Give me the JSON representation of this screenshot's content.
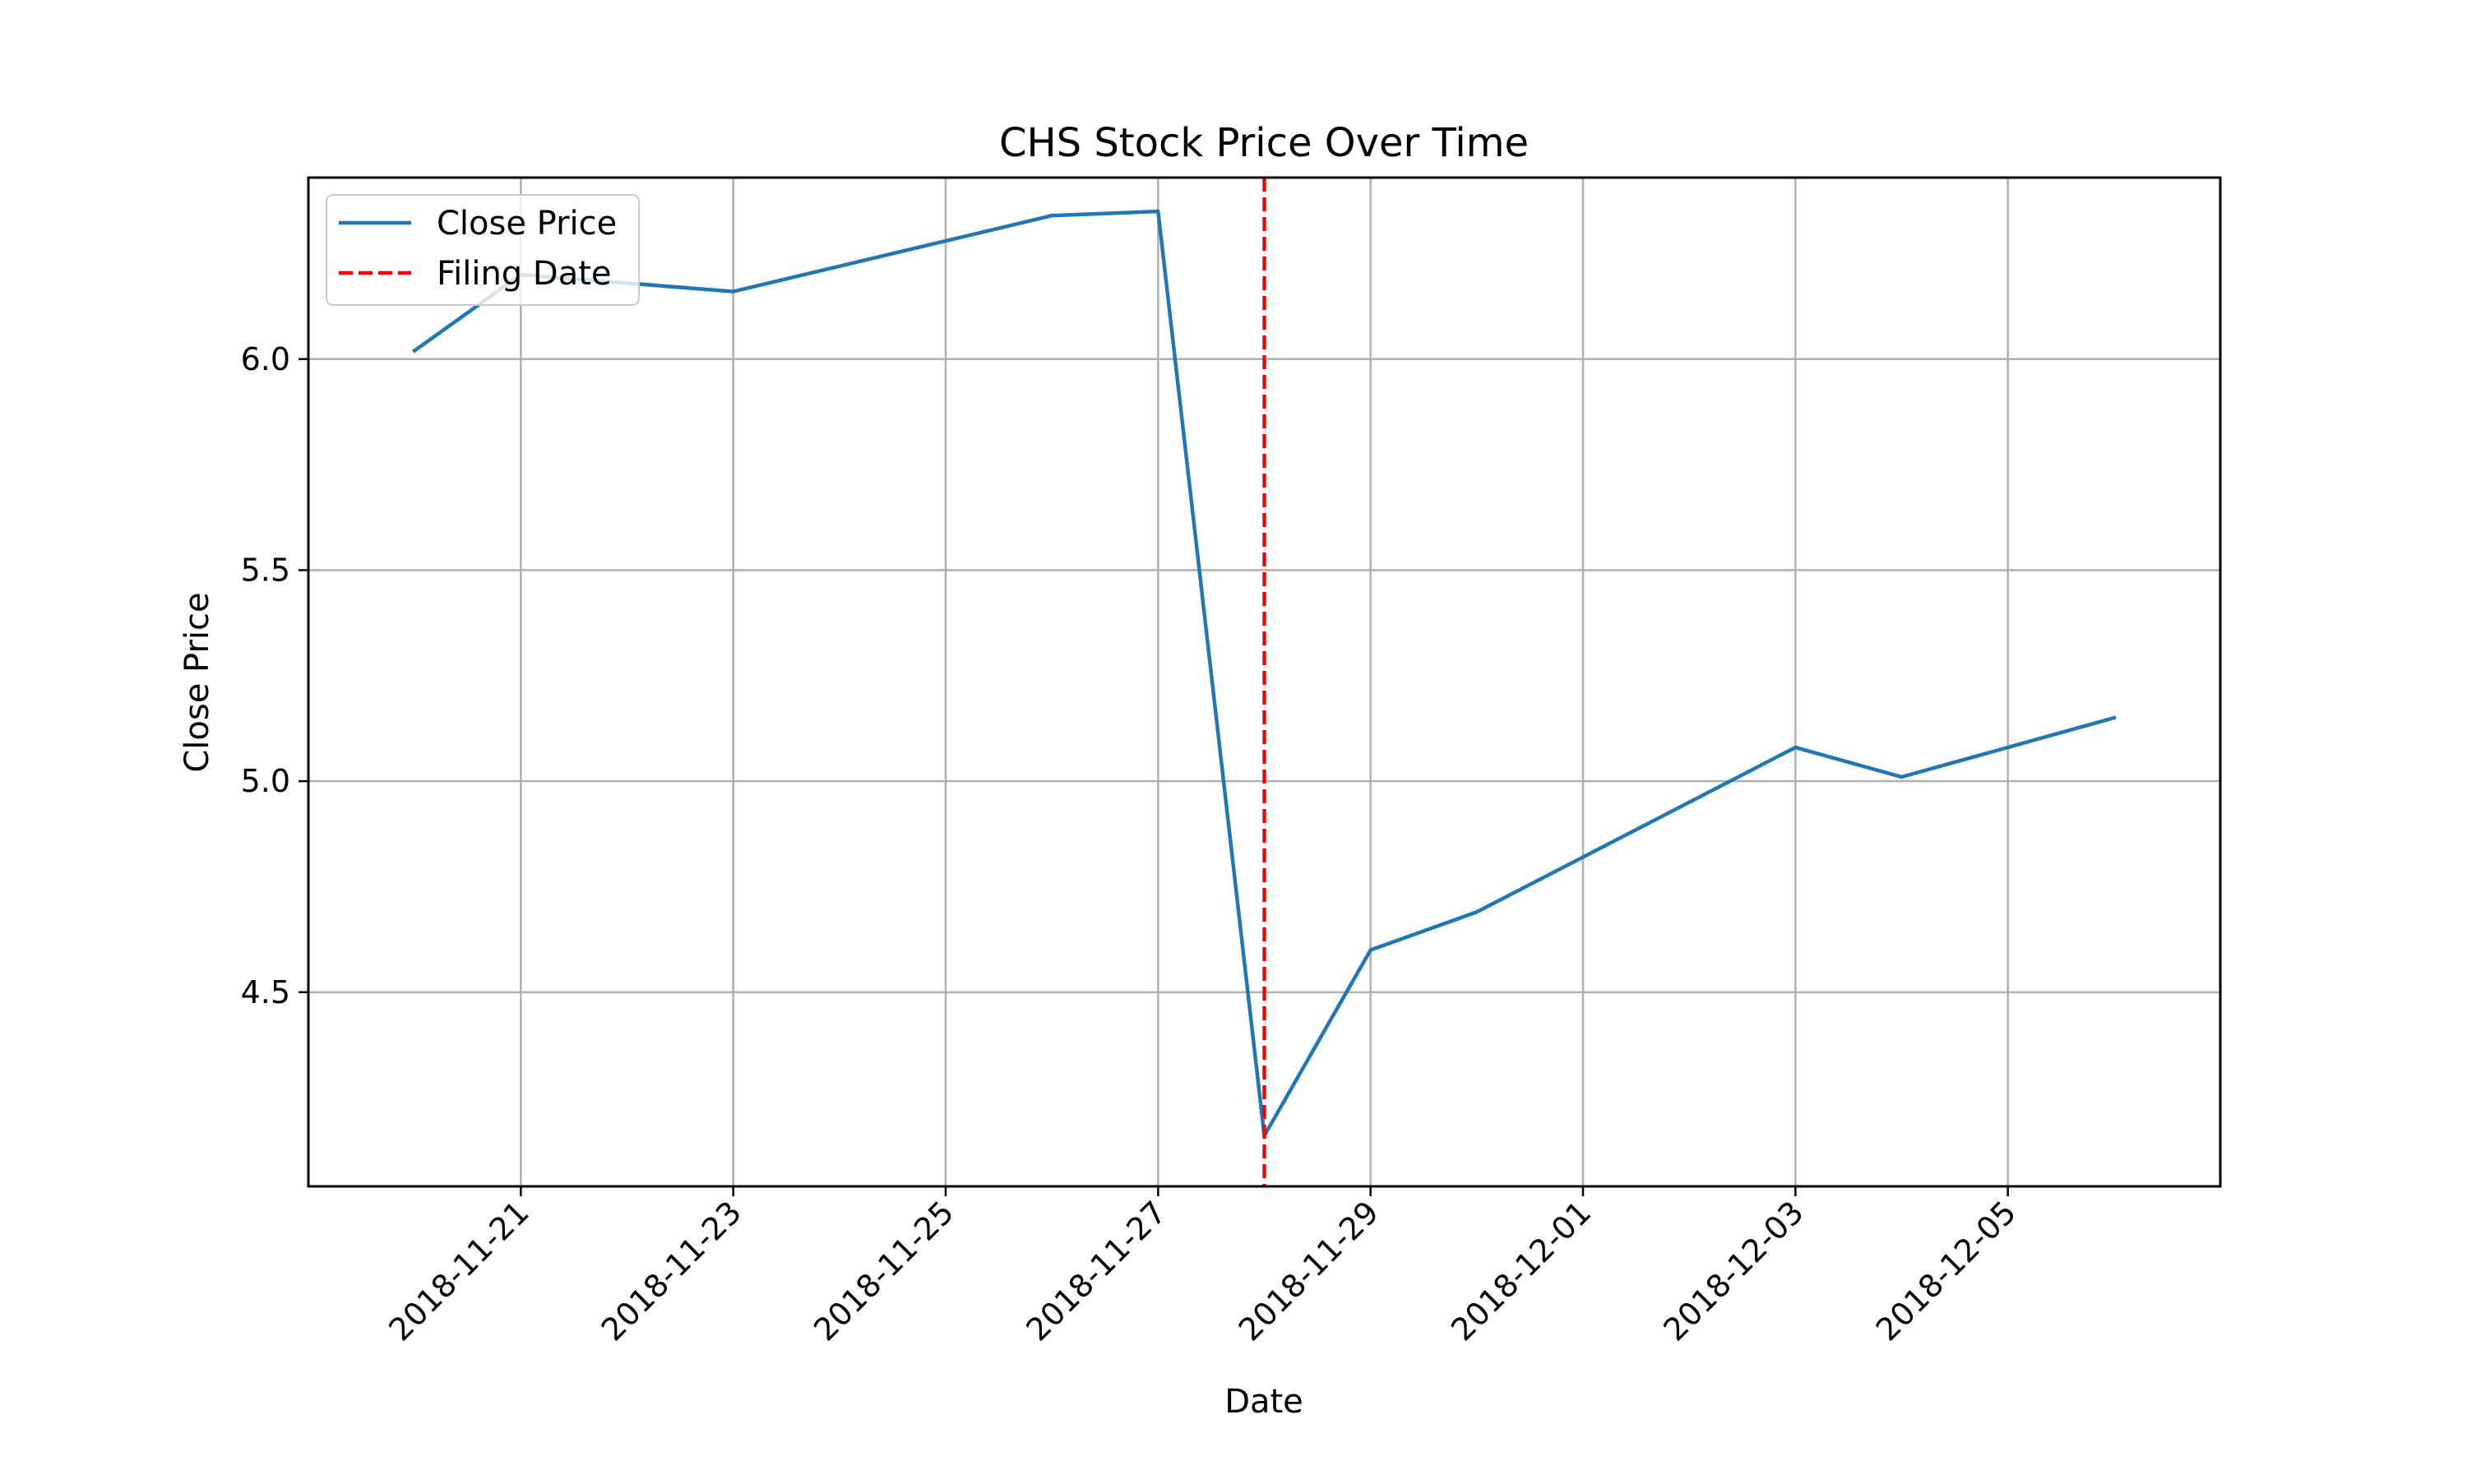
{
  "chart_data": {
    "type": "line",
    "title": "CHS Stock Price Over Time",
    "xlabel": "Date",
    "ylabel": "Close Price",
    "x_axis_type": "date",
    "xlim": [
      "2018-11-19",
      "2018-12-07"
    ],
    "ylim": [
      4.04,
      6.43
    ],
    "grid": true,
    "legend_position": "top-left",
    "x_ticks": [
      "2018-11-21",
      "2018-11-23",
      "2018-11-25",
      "2018-11-27",
      "2018-11-29",
      "2018-12-01",
      "2018-12-03",
      "2018-12-05"
    ],
    "y_ticks": [
      4.5,
      5.0,
      5.5,
      6.0
    ],
    "series": [
      {
        "name": "Close Price",
        "color": "#1f77b4",
        "style": "solid",
        "points": [
          {
            "x": "2018-11-20",
            "y": 6.02
          },
          {
            "x": "2018-11-21",
            "y": 6.2
          },
          {
            "x": "2018-11-23",
            "y": 6.16
          },
          {
            "x": "2018-11-26",
            "y": 6.34
          },
          {
            "x": "2018-11-27",
            "y": 6.35
          },
          {
            "x": "2018-11-28",
            "y": 4.16
          },
          {
            "x": "2018-11-29",
            "y": 4.6
          },
          {
            "x": "2018-11-30",
            "y": 4.69
          },
          {
            "x": "2018-12-03",
            "y": 5.08
          },
          {
            "x": "2018-12-04",
            "y": 5.01
          },
          {
            "x": "2018-12-06",
            "y": 5.15
          }
        ]
      }
    ],
    "vlines": [
      {
        "name": "Filing Date",
        "x": "2018-11-28",
        "color": "#ff0000",
        "style": "dashed"
      }
    ]
  }
}
